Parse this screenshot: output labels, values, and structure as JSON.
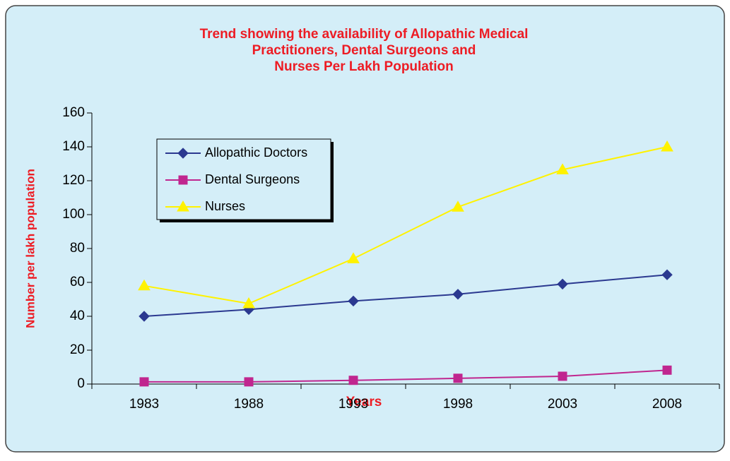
{
  "chart_data": {
    "type": "line",
    "title": [
      "Trend showing the availability of Allopathic Medical",
      "Practitioners, Dental Surgeons and",
      "Nurses Per Lakh Population"
    ],
    "x_label": "Years",
    "y_label": "Number per lakh population",
    "categories": [
      "1983",
      "1988",
      "1993",
      "1998",
      "2003",
      "2008"
    ],
    "series": [
      {
        "name": "Allopathic Doctors",
        "color": "#2b3990",
        "marker": "diamond",
        "values": [
          40,
          44,
          49,
          53,
          59,
          64.5
        ]
      },
      {
        "name": "Dental Surgeons",
        "color": "#c0268f",
        "marker": "square",
        "values": [
          1.3,
          1.3,
          2.2,
          3.4,
          4.6,
          8.2
        ]
      },
      {
        "name": "Nurses",
        "color": "#fff200",
        "marker": "triangle",
        "values": [
          58,
          47.5,
          74,
          104.5,
          126.5,
          140
        ]
      }
    ],
    "ylim": [
      0,
      160
    ],
    "yticks": [
      0,
      20,
      40,
      60,
      80,
      100,
      120,
      140,
      160
    ],
    "legend": "upper left",
    "grid": false
  }
}
